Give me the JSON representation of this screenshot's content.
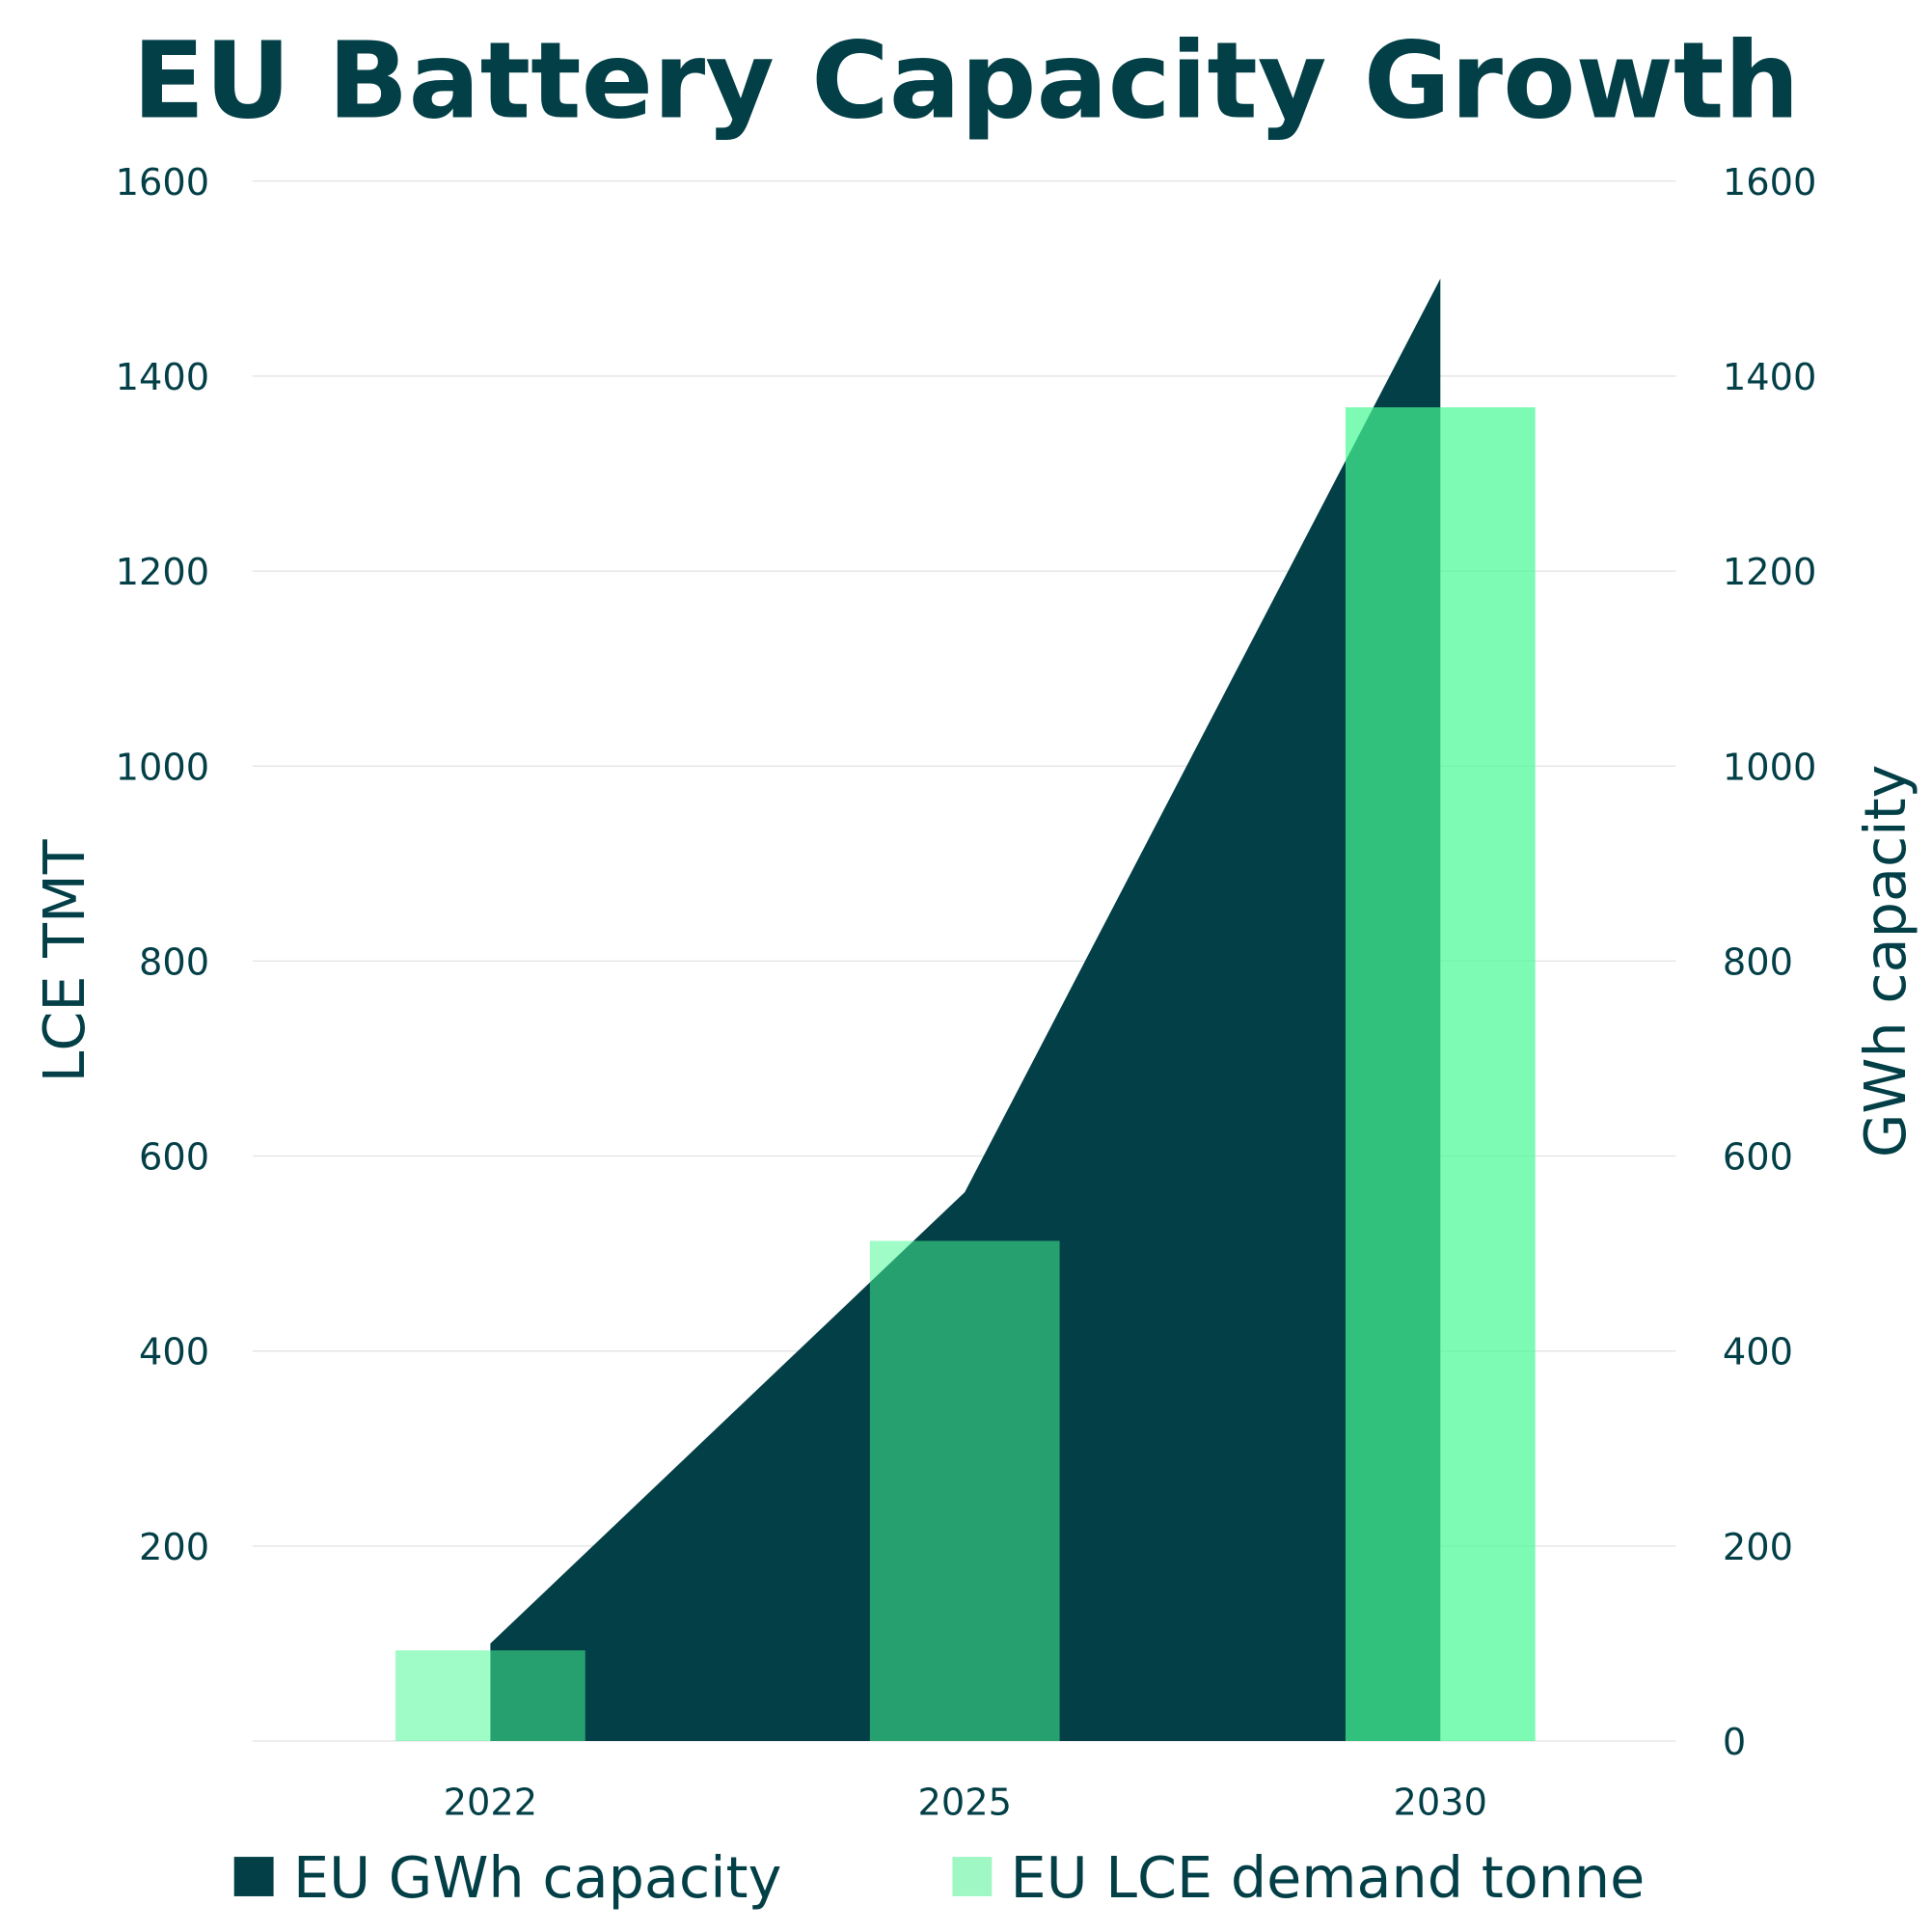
{
  "chart_data": {
    "type": "bar+area",
    "title": "EU Battery Capacity Growth",
    "categories": [
      "2022",
      "2025",
      "2030"
    ],
    "ylabel_left": "LCE TMT",
    "ylabel_right": "GWh capacity",
    "ylim_left": [
      0,
      1600
    ],
    "ylim_right": [
      0,
      1600
    ],
    "left_ticks": [
      "200",
      "400",
      "600",
      "800",
      "1000",
      "1200",
      "1400",
      "1600"
    ],
    "right_ticks": [
      "0",
      "200",
      "400",
      "600",
      "800",
      "1000",
      "1200",
      "1400",
      "1600"
    ],
    "grid": true,
    "legend_position": "bottom",
    "series": [
      {
        "name": "EU GWh capacity",
        "type": "area",
        "axis": "right",
        "values": [
          100,
          563,
          1500
        ],
        "color": "#033f47"
      },
      {
        "name": "EU LCE demand tonne",
        "type": "bar",
        "axis": "left",
        "values": [
          93,
          513,
          1368
        ],
        "color": "#46fa94",
        "legend_color": "#9ff7c4"
      }
    ]
  }
}
